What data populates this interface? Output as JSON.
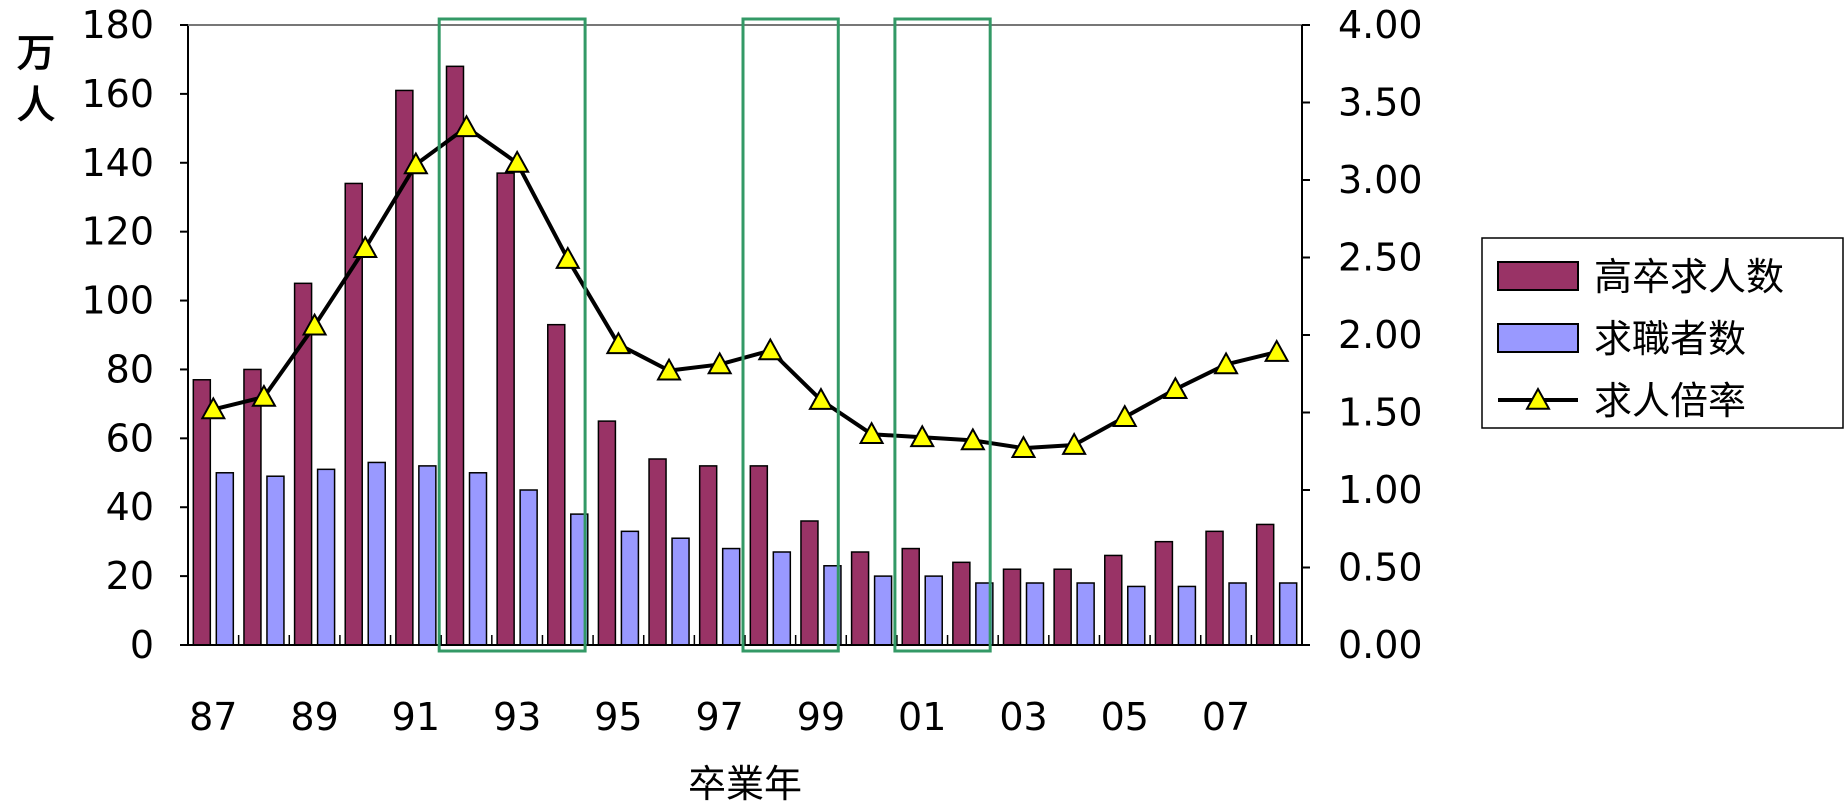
{
  "chart_data": {
    "type": "bar",
    "categories": [
      "87",
      "88",
      "89",
      "90",
      "91",
      "92",
      "93",
      "94",
      "95",
      "96",
      "97",
      "98",
      "99",
      "00",
      "01",
      "02",
      "03",
      "04",
      "05",
      "06",
      "07",
      "08"
    ],
    "x_tick_labels": [
      "87",
      "89",
      "91",
      "93",
      "95",
      "97",
      "99",
      "01",
      "03",
      "05",
      "07"
    ],
    "x_tick_every": 2,
    "xlabel": "卒業年",
    "ylabel": "万人",
    "ylim": [
      0,
      180
    ],
    "y_ticks": [
      "0",
      "20",
      "40",
      "60",
      "80",
      "100",
      "120",
      "140",
      "160",
      "180"
    ],
    "y2lim": [
      0,
      4.0
    ],
    "y2_ticks": [
      "0.00",
      "0.50",
      "1.00",
      "1.50",
      "2.00",
      "2.50",
      "3.00",
      "3.50",
      "4.00"
    ],
    "legend_position": "right",
    "series": [
      {
        "name": "高卒求人数",
        "type": "bar",
        "axis": "left",
        "color": "#993366",
        "values": [
          77,
          80,
          105,
          134,
          161,
          168,
          137,
          93,
          65,
          54,
          52,
          52,
          36,
          27,
          28,
          24,
          22,
          22,
          26,
          30,
          33,
          35
        ]
      },
      {
        "name": "求職者数",
        "type": "bar",
        "axis": "left",
        "color": "#9999ff",
        "values": [
          50,
          49,
          51,
          53,
          52,
          50,
          45,
          38,
          33,
          31,
          28,
          27,
          23,
          20,
          20,
          18,
          18,
          18,
          17,
          17,
          18,
          18
        ]
      },
      {
        "name": "求人倍率",
        "type": "line",
        "axis": "right",
        "color": "#000000",
        "marker": "triangle",
        "marker_color": "#ffff00",
        "values": [
          1.52,
          1.6,
          2.06,
          2.56,
          3.1,
          3.34,
          3.11,
          2.49,
          1.94,
          1.77,
          1.81,
          1.9,
          1.58,
          1.36,
          1.34,
          1.32,
          1.27,
          1.29,
          1.47,
          1.65,
          1.81,
          1.89
        ]
      }
    ],
    "highlight_boxes": [
      {
        "from_category": "92",
        "to_category": "94"
      },
      {
        "from_category": "98",
        "to_category": "99"
      },
      {
        "from_category": "01",
        "to_category": "02"
      }
    ],
    "highlight_color": "#339966"
  }
}
